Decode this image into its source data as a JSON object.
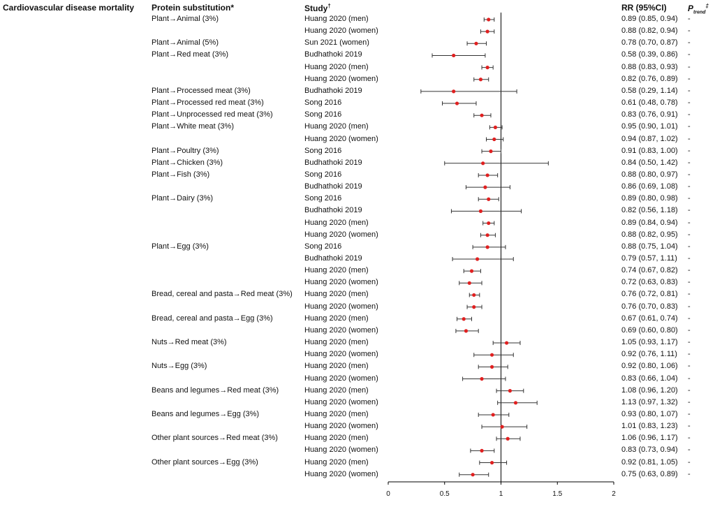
{
  "headers": {
    "outcome": "Cardiovascular disease mortality",
    "substitution": "Protein substitution",
    "substitution_mark": "*",
    "study": "Study",
    "study_mark": "†",
    "rr": "RR (95%CI)",
    "ptrend_p": "P",
    "ptrend_sub": "trend",
    "ptrend_mark": "‡"
  },
  "colors": {
    "point": "#e02020",
    "line": "#333333",
    "axis": "#000000"
  },
  "chart_data": {
    "type": "forest",
    "xlim": [
      0,
      2
    ],
    "xticks": [
      "0",
      "0.5",
      "1",
      "1.5",
      "2"
    ],
    "reference_line": 1,
    "rows": [
      {
        "substitution": "Plant→Animal (3%)",
        "study": "Huang 2020 (men)",
        "rr": 0.89,
        "lo": 0.85,
        "hi": 0.94,
        "label": "0.89 (0.85, 0.94)",
        "p": "-"
      },
      {
        "substitution": "",
        "study": "Huang 2020 (women)",
        "rr": 0.88,
        "lo": 0.82,
        "hi": 0.94,
        "label": "0.88 (0.82, 0.94)",
        "p": "-"
      },
      {
        "substitution": "Plant→Animal (5%)",
        "study": "Sun 2021 (women)",
        "rr": 0.78,
        "lo": 0.7,
        "hi": 0.87,
        "label": "0.78 (0.70, 0.87)",
        "p": "-"
      },
      {
        "substitution": "Plant→Red meat (3%)",
        "study": "Budhathoki 2019",
        "rr": 0.58,
        "lo": 0.39,
        "hi": 0.86,
        "label": "0.58 (0.39, 0.86)",
        "p": "-"
      },
      {
        "substitution": "",
        "study": "Huang 2020 (men)",
        "rr": 0.88,
        "lo": 0.83,
        "hi": 0.93,
        "label": "0.88 (0.83, 0.93)",
        "p": "-"
      },
      {
        "substitution": "",
        "study": "Huang 2020 (women)",
        "rr": 0.82,
        "lo": 0.76,
        "hi": 0.89,
        "label": "0.82 (0.76, 0.89)",
        "p": "-"
      },
      {
        "substitution": "Plant→Processed meat (3%)",
        "study": "Budhathoki 2019",
        "rr": 0.58,
        "lo": 0.29,
        "hi": 1.14,
        "label": "0.58 (0.29, 1.14)",
        "p": "-"
      },
      {
        "substitution": "Plant→Processed red meat (3%)",
        "study": "Song 2016",
        "rr": 0.61,
        "lo": 0.48,
        "hi": 0.78,
        "label": "0.61 (0.48, 0.78)",
        "p": "-"
      },
      {
        "substitution": "Plant→Unprocessed red meat (3%)",
        "study": "Song 2016",
        "rr": 0.83,
        "lo": 0.76,
        "hi": 0.91,
        "label": "0.83 (0.76, 0.91)",
        "p": "-"
      },
      {
        "substitution": "Plant→White meat (3%)",
        "study": "Huang 2020 (men)",
        "rr": 0.95,
        "lo": 0.9,
        "hi": 1.01,
        "label": "0.95 (0.90, 1.01)",
        "p": "-"
      },
      {
        "substitution": "",
        "study": "Huang 2020 (women)",
        "rr": 0.94,
        "lo": 0.87,
        "hi": 1.02,
        "label": "0.94 (0.87, 1.02)",
        "p": "-"
      },
      {
        "substitution": "Plant→Poultry (3%)",
        "study": "Song 2016",
        "rr": 0.91,
        "lo": 0.83,
        "hi": 1.0,
        "label": "0.91 (0.83, 1.00)",
        "p": "-"
      },
      {
        "substitution": "Plant→Chicken (3%)",
        "study": "Budhathoki 2019",
        "rr": 0.84,
        "lo": 0.5,
        "hi": 1.42,
        "label": "0.84 (0.50, 1.42)",
        "p": "-"
      },
      {
        "substitution": "Plant→Fish (3%)",
        "study": "Song 2016",
        "rr": 0.88,
        "lo": 0.8,
        "hi": 0.97,
        "label": "0.88 (0.80, 0.97)",
        "p": "-"
      },
      {
        "substitution": "",
        "study": "Budhathoki 2019",
        "rr": 0.86,
        "lo": 0.69,
        "hi": 1.08,
        "label": "0.86 (0.69, 1.08)",
        "p": "-"
      },
      {
        "substitution": "Plant→Dairy (3%)",
        "study": "Song 2016",
        "rr": 0.89,
        "lo": 0.8,
        "hi": 0.98,
        "label": "0.89 (0.80, 0.98)",
        "p": "-"
      },
      {
        "substitution": "",
        "study": "Budhathoki 2019",
        "rr": 0.82,
        "lo": 0.56,
        "hi": 1.18,
        "label": "0.82 (0.56, 1.18)",
        "p": "-"
      },
      {
        "substitution": "",
        "study": "Huang 2020 (men)",
        "rr": 0.89,
        "lo": 0.84,
        "hi": 0.94,
        "label": "0.89 (0.84, 0.94)",
        "p": "-"
      },
      {
        "substitution": "",
        "study": "Huang 2020 (women)",
        "rr": 0.88,
        "lo": 0.82,
        "hi": 0.95,
        "label": "0.88 (0.82, 0.95)",
        "p": "-"
      },
      {
        "substitution": "Plant→Egg (3%)",
        "study": "Song 2016",
        "rr": 0.88,
        "lo": 0.75,
        "hi": 1.04,
        "label": "0.88 (0.75, 1.04)",
        "p": "-"
      },
      {
        "substitution": "",
        "study": "Budhathoki 2019",
        "rr": 0.79,
        "lo": 0.57,
        "hi": 1.11,
        "label": "0.79 (0.57, 1.11)",
        "p": "-"
      },
      {
        "substitution": "",
        "study": "Huang 2020 (men)",
        "rr": 0.74,
        "lo": 0.67,
        "hi": 0.82,
        "label": "0.74 (0.67, 0.82)",
        "p": "-"
      },
      {
        "substitution": "",
        "study": "Huang 2020 (women)",
        "rr": 0.72,
        "lo": 0.63,
        "hi": 0.83,
        "label": "0.72 (0.63, 0.83)",
        "p": "-"
      },
      {
        "substitution": "Bread, cereal and pasta→Red meat (3%)",
        "study": "Huang 2020 (men)",
        "rr": 0.76,
        "lo": 0.72,
        "hi": 0.81,
        "label": "0.76 (0.72, 0.81)",
        "p": "-"
      },
      {
        "substitution": "",
        "study": "Huang 2020 (women)",
        "rr": 0.76,
        "lo": 0.7,
        "hi": 0.83,
        "label": "0.76 (0.70, 0.83)",
        "p": "-"
      },
      {
        "substitution": "Bread, cereal and pasta→Egg (3%)",
        "study": "Huang 2020 (men)",
        "rr": 0.67,
        "lo": 0.61,
        "hi": 0.74,
        "label": "0.67 (0.61, 0.74)",
        "p": "-"
      },
      {
        "substitution": "",
        "study": "Huang 2020 (women)",
        "rr": 0.69,
        "lo": 0.6,
        "hi": 0.8,
        "label": "0.69 (0.60, 0.80)",
        "p": "-"
      },
      {
        "substitution": "Nuts→Red meat (3%)",
        "study": "Huang 2020 (men)",
        "rr": 1.05,
        "lo": 0.93,
        "hi": 1.17,
        "label": "1.05 (0.93, 1.17)",
        "p": "-"
      },
      {
        "substitution": "",
        "study": "Huang 2020 (women)",
        "rr": 0.92,
        "lo": 0.76,
        "hi": 1.11,
        "label": "0.92 (0.76, 1.11)",
        "p": "-"
      },
      {
        "substitution": "Nuts→Egg (3%)",
        "study": "Huang 2020 (men)",
        "rr": 0.92,
        "lo": 0.8,
        "hi": 1.06,
        "label": "0.92 (0.80, 1.06)",
        "p": "-"
      },
      {
        "substitution": "",
        "study": "Huang 2020 (women)",
        "rr": 0.83,
        "lo": 0.66,
        "hi": 1.04,
        "label": "0.83 (0.66, 1.04)",
        "p": "-"
      },
      {
        "substitution": "Beans and legumes→Red meat (3%)",
        "study": "Huang 2020 (men)",
        "rr": 1.08,
        "lo": 0.96,
        "hi": 1.2,
        "label": "1.08 (0.96, 1.20)",
        "p": "-"
      },
      {
        "substitution": "",
        "study": "Huang 2020 (women)",
        "rr": 1.13,
        "lo": 0.97,
        "hi": 1.32,
        "label": "1.13 (0.97, 1.32)",
        "p": "-"
      },
      {
        "substitution": "Beans and legumes→Egg (3%)",
        "study": "Huang 2020 (men)",
        "rr": 0.93,
        "lo": 0.8,
        "hi": 1.07,
        "label": "0.93 (0.80, 1.07)",
        "p": "-"
      },
      {
        "substitution": "",
        "study": "Huang 2020 (women)",
        "rr": 1.01,
        "lo": 0.83,
        "hi": 1.23,
        "label": "1.01 (0.83, 1.23)",
        "p": "-"
      },
      {
        "substitution": "Other plant sources→Red meat (3%)",
        "study": "Huang 2020 (men)",
        "rr": 1.06,
        "lo": 0.96,
        "hi": 1.17,
        "label": "1.06 (0.96, 1.17)",
        "p": "-"
      },
      {
        "substitution": "",
        "study": "Huang 2020 (women)",
        "rr": 0.83,
        "lo": 0.73,
        "hi": 0.94,
        "label": "0.83 (0.73, 0.94)",
        "p": "-"
      },
      {
        "substitution": "Other plant sources→Egg (3%)",
        "study": "Huang 2020 (men)",
        "rr": 0.92,
        "lo": 0.81,
        "hi": 1.05,
        "label": "0.92 (0.81, 1.05)",
        "p": "-"
      },
      {
        "substitution": "",
        "study": "Huang 2020 (women)",
        "rr": 0.75,
        "lo": 0.63,
        "hi": 0.89,
        "label": "0.75 (0.63, 0.89)",
        "p": "-"
      }
    ]
  }
}
